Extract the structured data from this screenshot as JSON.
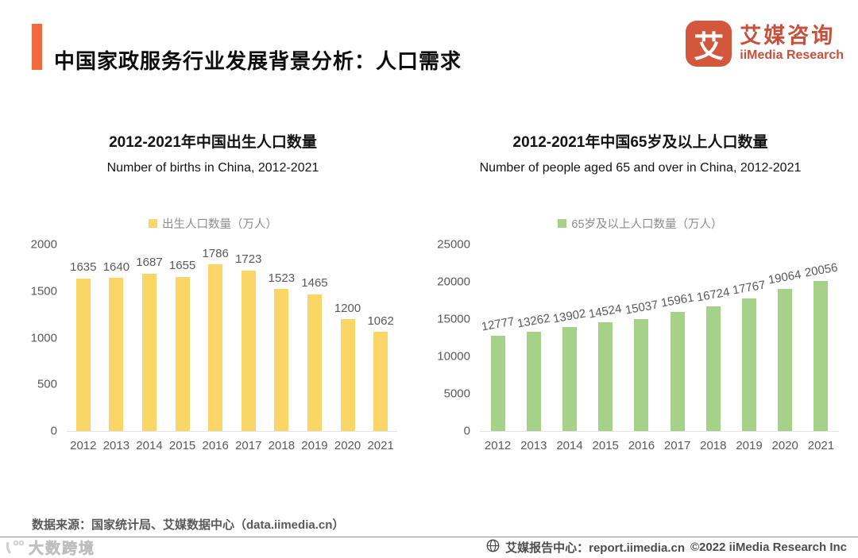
{
  "header": {
    "title": "中国家政服务行业发展背景分析：人口需求"
  },
  "logo": {
    "icon_char": "艾",
    "name_cn": "艾媒咨询",
    "name_en": "iiMedia Research"
  },
  "colors": {
    "accent_orange": "#F3683C",
    "logo_red": "#C8503A",
    "birth_bar_yellow": "#FAD666",
    "aged_bar_green": "#A6D189"
  },
  "icons": {
    "report_center": "globe-icon",
    "watermark": "dashukuajing-logo-icon"
  },
  "chart_data": [
    {
      "type": "bar",
      "title": "2012-2021年中国出生人口数量",
      "subtitle": "Number of births in China, 2012-2021",
      "legend": "出生人口数量（万人）",
      "bar_color": "#FAD666",
      "categories": [
        "2012",
        "2013",
        "2014",
        "2015",
        "2016",
        "2017",
        "2018",
        "2019",
        "2020",
        "2021"
      ],
      "values": [
        1635,
        1640,
        1687,
        1655,
        1786,
        1723,
        1523,
        1465,
        1200,
        1062
      ],
      "ylim": [
        0,
        2000
      ],
      "yticks": [
        0,
        500,
        1000,
        1500,
        2000
      ],
      "grid": false,
      "legend_position": "top",
      "label_rotation": 0
    },
    {
      "type": "bar",
      "title": "2012-2021年中国65岁及以上人口数量",
      "subtitle": "Number of people aged 65 and over in China, 2012-2021",
      "legend": "65岁及以上人口数量（万人）",
      "bar_color": "#A6D189",
      "categories": [
        "2012",
        "2013",
        "2014",
        "2015",
        "2016",
        "2017",
        "2018",
        "2019",
        "2020",
        "2021"
      ],
      "values": [
        12777,
        13262,
        13902,
        14524,
        15037,
        15961,
        16724,
        17767,
        19064,
        20056
      ],
      "ylim": [
        0,
        25000
      ],
      "yticks": [
        0,
        5000,
        10000,
        15000,
        20000,
        25000
      ],
      "grid": false,
      "legend_position": "top",
      "label_rotation": -10
    }
  ],
  "footer": {
    "source": "数据来源：国家统计局、艾媒数据中心（data.iimedia.cn）"
  },
  "bottom_bar": {
    "watermark": "大数跨境",
    "report_center": "艾媒报告中心：report.iimedia.cn",
    "copyright": "©2022  iiMedia Research Inc"
  }
}
